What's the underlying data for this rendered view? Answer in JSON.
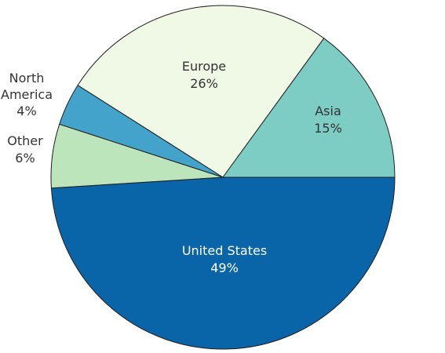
{
  "chart_data": {
    "type": "pie",
    "title": "",
    "slices": [
      {
        "name": "United States",
        "value": 49,
        "label": [
          "United States",
          "49%"
        ],
        "color": "#0a64a8",
        "label_color": "#ffffff"
      },
      {
        "name": "Asia",
        "value": 15,
        "label": [
          "Asia",
          "15%"
        ],
        "color": "#7ecdc4",
        "label_color": "#333333"
      },
      {
        "name": "Europe",
        "value": 26,
        "label": [
          "Europe",
          "26%"
        ],
        "color": "#f0f8e6",
        "label_color": "#333333"
      },
      {
        "name": "North America",
        "value": 4,
        "label": [
          "North",
          "America",
          "4%"
        ],
        "color": "#43a3cb",
        "label_color": "#333333"
      },
      {
        "name": "Other",
        "value": 6,
        "label": [
          "Other",
          "6%"
        ],
        "color": "#bde5bc",
        "label_color": "#333333"
      }
    ],
    "legend": "none"
  }
}
